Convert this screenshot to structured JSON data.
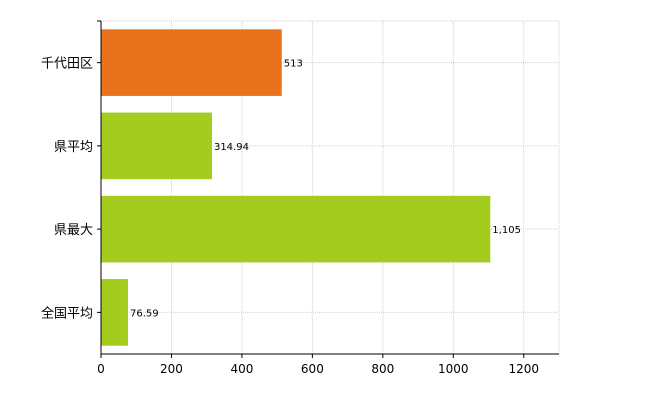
{
  "chart_data": {
    "type": "bar",
    "orientation": "horizontal",
    "categories": [
      "千代田区",
      "県平均",
      "県最大",
      "全国平均"
    ],
    "values": [
      513,
      314.94,
      1105,
      76.59
    ],
    "value_labels": [
      "513",
      "314.94",
      "1,105",
      "76.59"
    ],
    "bar_colors": [
      "#e8731c",
      "#a3cc1e",
      "#a3cc1e",
      "#a3cc1e"
    ],
    "xlim": [
      0,
      1300
    ],
    "x_ticks": [
      0,
      200,
      400,
      600,
      800,
      1000,
      1200
    ],
    "x_tick_labels": [
      "0",
      "200",
      "400",
      "600",
      "800",
      "1000",
      "1200"
    ],
    "grid": true,
    "title": "",
    "xlabel": "",
    "ylabel": ""
  }
}
